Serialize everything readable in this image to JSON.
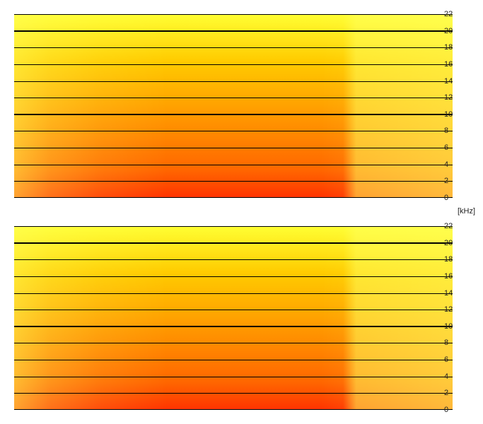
{
  "unit_label": "[kHz]",
  "chart_data": [
    {
      "type": "heatmap",
      "ylim": [
        0,
        22
      ],
      "yticks": [
        22,
        20,
        18,
        16,
        14,
        12,
        10,
        8,
        6,
        4,
        2,
        0
      ],
      "bold_gridlines": [
        20,
        10
      ],
      "grid": true,
      "colors": {
        "low": "#ffff33",
        "mid": "#ff9900",
        "high": "#ff3300"
      }
    },
    {
      "type": "heatmap",
      "ylim": [
        0,
        22
      ],
      "yticks": [
        22,
        20,
        18,
        16,
        14,
        12,
        10,
        8,
        6,
        4,
        2,
        0
      ],
      "bold_gridlines": [
        20,
        10
      ],
      "grid": true,
      "colors": {
        "low": "#ffff33",
        "mid": "#ff9900",
        "high": "#ff3300"
      }
    }
  ]
}
